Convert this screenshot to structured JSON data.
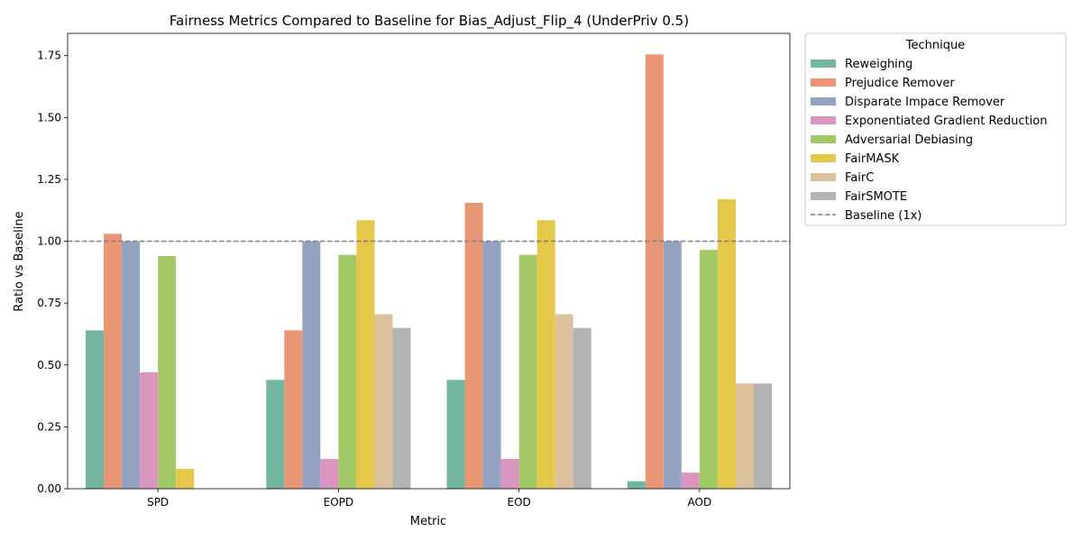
{
  "chart_data": {
    "type": "bar",
    "title": "Fairness Metrics Compared to Baseline for Bias_Adjust_Flip_4 (UnderPriv 0.5)",
    "xlabel": "Metric",
    "ylabel": "Ratio vs Baseline",
    "categories": [
      "SPD",
      "EOPD",
      "EOD",
      "AOD"
    ],
    "ylim": [
      0,
      1.84
    ],
    "yticks": [
      "0.00",
      "0.25",
      "0.50",
      "0.75",
      "1.00",
      "1.25",
      "1.50",
      "1.75"
    ],
    "baseline": {
      "value": 1.0,
      "label": "Baseline (1x)",
      "color": "#808080"
    },
    "legend_title": "Technique",
    "legend_position": "outside-right",
    "grid": false,
    "series": [
      {
        "name": "Reweighing",
        "color": "#72b6a1",
        "values": [
          0.64,
          0.44,
          0.44,
          0.03
        ]
      },
      {
        "name": "Prejudice Remover",
        "color": "#e99675",
        "values": [
          1.03,
          0.64,
          1.155,
          1.755
        ]
      },
      {
        "name": "Disparate Impace Remover",
        "color": "#95a3c3",
        "values": [
          1.0,
          1.0,
          1.0,
          1.0
        ]
      },
      {
        "name": "Exponentiated Gradient Reduction",
        "color": "#db96c0",
        "values": [
          0.47,
          0.12,
          0.12,
          0.065
        ]
      },
      {
        "name": "Adversarial Debiasing",
        "color": "#a2c865",
        "values": [
          0.94,
          0.945,
          0.945,
          0.965
        ]
      },
      {
        "name": "FairMASK",
        "color": "#e5c84a",
        "values": [
          0.08,
          1.085,
          1.085,
          1.17
        ]
      },
      {
        "name": "FairC",
        "color": "#dac09b",
        "values": [
          0,
          0.705,
          0.705,
          0.425
        ]
      },
      {
        "name": "FairSMOTE",
        "color": "#b3b3b3",
        "values": [
          0,
          0.65,
          0.65,
          0.425
        ]
      }
    ]
  }
}
